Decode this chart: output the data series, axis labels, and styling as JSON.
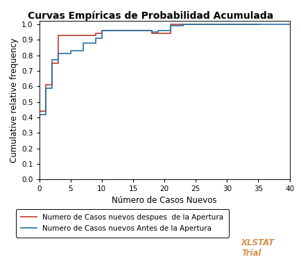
{
  "title": "Curvas Empíricas de Probabilidad Acumulada",
  "xlabel": "Número de Casos Nuevos",
  "ylabel": "Cumulative relative frequency",
  "xlim": [
    0,
    40
  ],
  "ylim": [
    0,
    1.02
  ],
  "xticks": [
    0,
    5,
    10,
    15,
    20,
    25,
    30,
    35,
    40
  ],
  "yticks": [
    0,
    0.1,
    0.2,
    0.3,
    0.4,
    0.5,
    0.6,
    0.7,
    0.8,
    0.9,
    1
  ],
  "red_x": [
    0,
    1,
    1,
    2,
    2,
    3,
    3,
    9,
    9,
    10,
    10,
    18,
    18,
    21,
    21,
    22,
    22,
    35
  ],
  "red_y": [
    0.44,
    0.44,
    0.61,
    0.61,
    0.75,
    0.75,
    0.93,
    0.93,
    0.94,
    0.94,
    0.96,
    0.96,
    0.94,
    0.94,
    1.0,
    1.0,
    1.0,
    1.0
  ],
  "blue_x": [
    0,
    1,
    1,
    2,
    2,
    3,
    3,
    5,
    5,
    7,
    7,
    9,
    9,
    10,
    10,
    18,
    18,
    19,
    19,
    21,
    21,
    23,
    23,
    35,
    35,
    40
  ],
  "blue_y": [
    0.42,
    0.42,
    0.59,
    0.59,
    0.77,
    0.77,
    0.81,
    0.81,
    0.83,
    0.83,
    0.88,
    0.88,
    0.91,
    0.91,
    0.96,
    0.96,
    0.95,
    0.95,
    0.96,
    0.96,
    0.99,
    0.99,
    1.0,
    1.0,
    1.0,
    1.0
  ],
  "red_color": "#c0392b",
  "blue_color": "#2471a3",
  "legend_red": "Numero de Casos nuevos despues  de la Apertura",
  "legend_blue": "Numero de Casos nuevos Antes de la Apertura",
  "bg_color": "#ffffff",
  "plot_bg": "#ffffff",
  "title_fontsize": 10,
  "label_fontsize": 8.5,
  "tick_fontsize": 7.5,
  "legend_fontsize": 7.5,
  "linewidth": 1.2,
  "xlstat_text": "XLSTAT\nTrial",
  "xlstat_color": "#d4914a"
}
